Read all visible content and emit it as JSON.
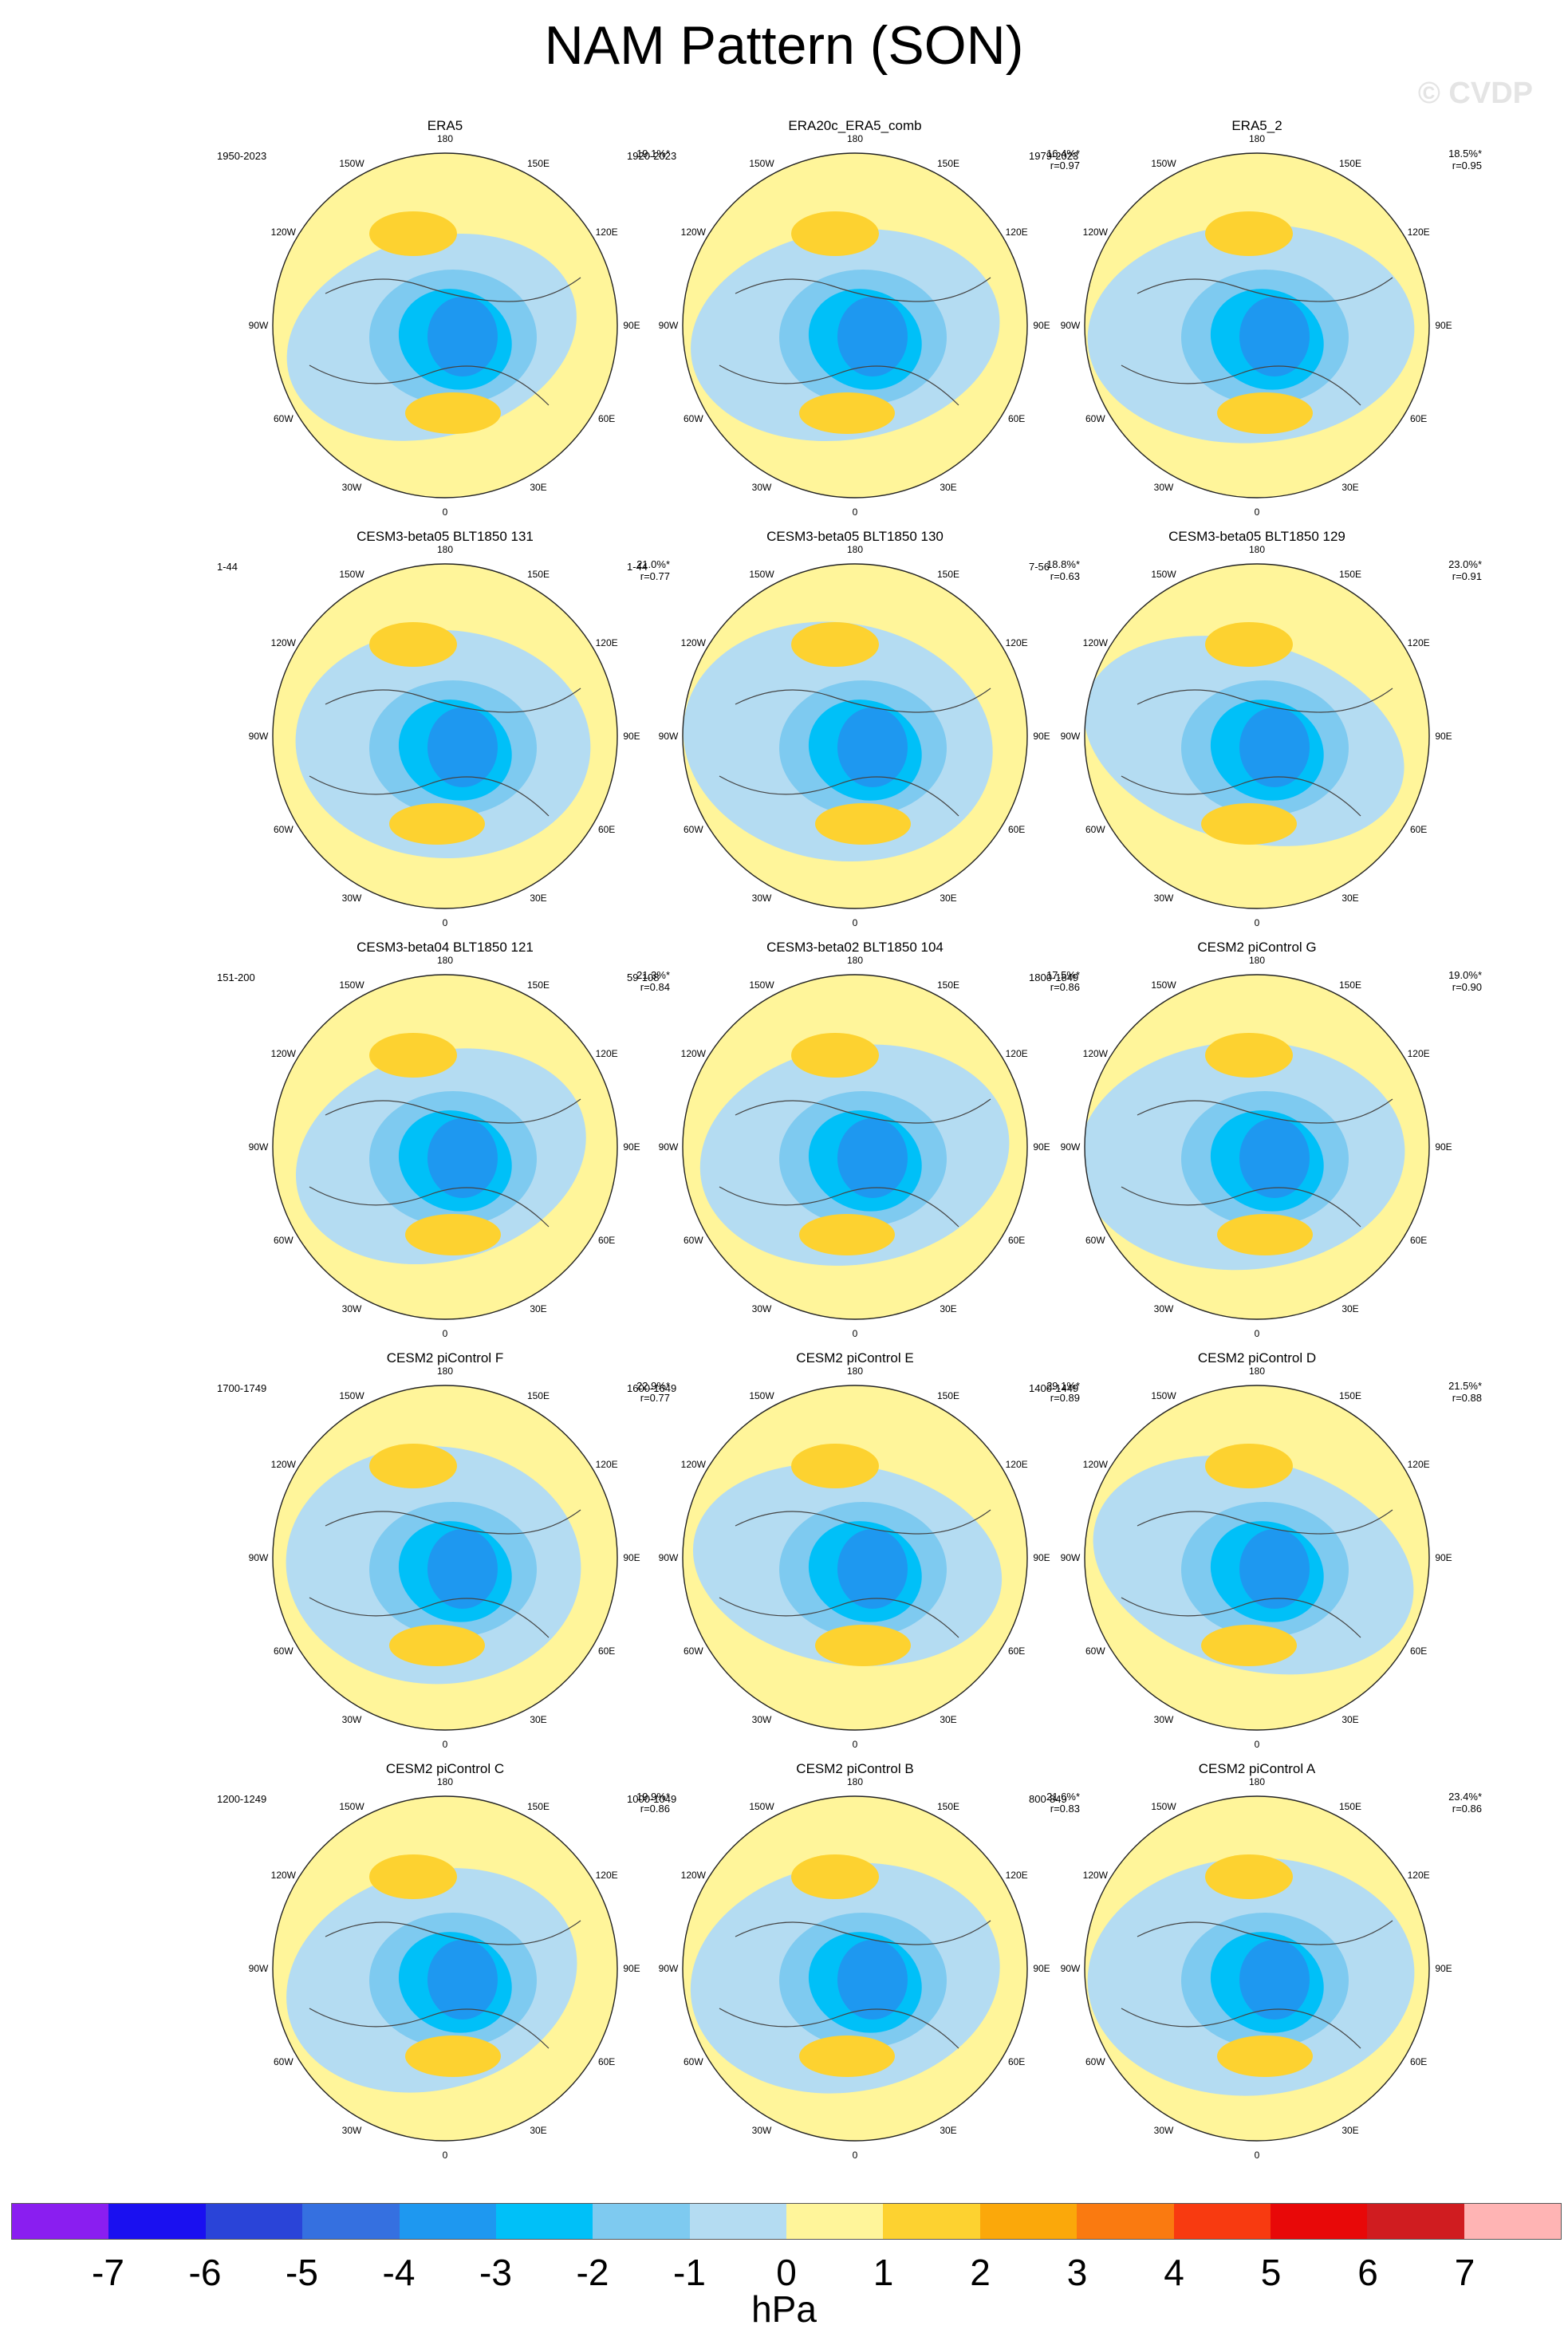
{
  "page": {
    "title": "NAM Pattern (SON)",
    "watermark": "© CVDP"
  },
  "chart_data": {
    "type": "heatmap",
    "projection": "north-polar-stereographic",
    "longitude_labels": [
      "180",
      "150E",
      "120E",
      "90E",
      "60E",
      "30E",
      "0",
      "30W",
      "60W",
      "90W",
      "120W",
      "150W"
    ],
    "panels": [
      {
        "title": "ERA5",
        "period": "1950-2023",
        "pct": "19.1%*",
        "r": ""
      },
      {
        "title": "ERA20c_ERA5_comb",
        "period": "1920-2023",
        "pct": "16.4%*",
        "r": "r=0.97"
      },
      {
        "title": "ERA5_2",
        "period": "1979-2023",
        "pct": "18.5%*",
        "r": "r=0.95"
      },
      {
        "title": "CESM3-beta05 BLT1850 131",
        "period": "1-44",
        "pct": "21.0%*",
        "r": "r=0.77"
      },
      {
        "title": "CESM3-beta05 BLT1850 130",
        "period": "1-44",
        "pct": "18.8%*",
        "r": "r=0.63"
      },
      {
        "title": "CESM3-beta05 BLT1850 129",
        "period": "7-56",
        "pct": "23.0%*",
        "r": "r=0.91"
      },
      {
        "title": "CESM3-beta04 BLT1850 121",
        "period": "151-200",
        "pct": "21.3%*",
        "r": "r=0.84"
      },
      {
        "title": "CESM3-beta02 BLT1850 104",
        "period": "59-108",
        "pct": "17.5%*",
        "r": "r=0.86"
      },
      {
        "title": "CESM2 piControl G",
        "period": "1800-1849",
        "pct": "19.0%*",
        "r": "r=0.90"
      },
      {
        "title": "CESM2 piControl F",
        "period": "1700-1749",
        "pct": "22.9%*",
        "r": "r=0.77"
      },
      {
        "title": "CESM2 piControl E",
        "period": "1600-1649",
        "pct": "29.1%*",
        "r": "r=0.89"
      },
      {
        "title": "CESM2 piControl D",
        "period": "1400-1449",
        "pct": "21.5%*",
        "r": "r=0.88"
      },
      {
        "title": "CESM2 piControl C",
        "period": "1200-1249",
        "pct": "19.9%*",
        "r": "r=0.86"
      },
      {
        "title": "CESM2 piControl B",
        "period": "1000-1049",
        "pct": "21.6%*",
        "r": "r=0.83"
      },
      {
        "title": "CESM2 piControl A",
        "period": "800-849",
        "pct": "23.4%*",
        "r": "r=0.86"
      }
    ],
    "colorbar": {
      "units": "hPa",
      "ticks": [
        "-7",
        "-6",
        "-5",
        "-4",
        "-3",
        "-2",
        "-1",
        "0",
        "1",
        "2",
        "3",
        "4",
        "5",
        "6",
        "7"
      ],
      "colors": [
        "#8a1ef0",
        "#1a10f0",
        "#2a44d8",
        "#3570e0",
        "#1e98f0",
        "#00c0f8",
        "#7ecaf0",
        "#b4dcf2",
        "#fff59a",
        "#fdd230",
        "#fba80a",
        "#fa7a10",
        "#f83a10",
        "#e80808",
        "#d01c20",
        "#ffb4b4"
      ]
    }
  }
}
